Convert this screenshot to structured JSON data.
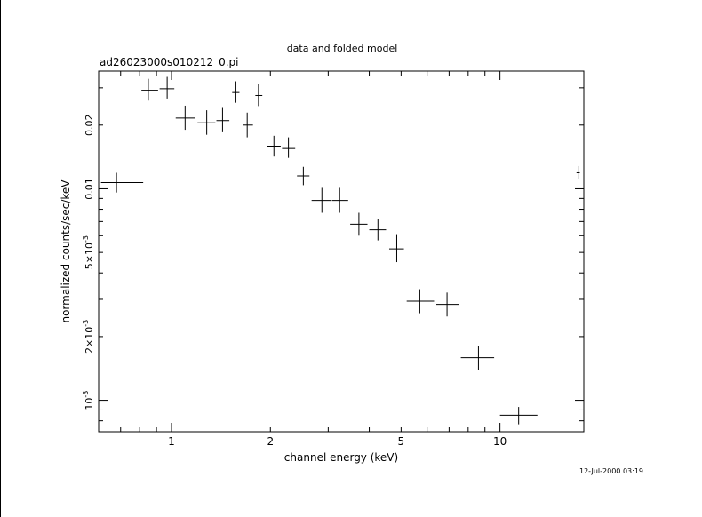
{
  "chart_data": {
    "type": "scatter",
    "title": "data and folded model",
    "subtitle": "ad26023000s010212_0.pi",
    "xlabel": "channel energy (keV)",
    "ylabel": "normalized counts/sec/keV",
    "timestamp": "12-Jul-2000 03:19",
    "x_scale": "log",
    "y_scale": "log",
    "xlim": [
      0.6,
      18.0
    ],
    "ylim": [
      0.00071,
      0.036
    ],
    "x_ticks": [
      {
        "value": 1,
        "label": "1"
      },
      {
        "value": 2,
        "label": "2"
      },
      {
        "value": 5,
        "label": "5"
      },
      {
        "value": 10,
        "label": "10"
      }
    ],
    "y_ticks": [
      {
        "value": 0.001,
        "base": "10",
        "exp": "-3"
      },
      {
        "value": 0.002,
        "base": "2×10",
        "exp": "-3"
      },
      {
        "value": 0.005,
        "base": "5×10",
        "exp": "-3"
      },
      {
        "value": 0.01,
        "label": "0.01"
      },
      {
        "value": 0.02,
        "label": "0.02"
      }
    ],
    "points": [
      {
        "x": 0.68,
        "y": 0.0107,
        "xerr": [
          0.61,
          0.82
        ],
        "yerr": [
          0.0096,
          0.0119
        ]
      },
      {
        "x": 0.85,
        "y": 0.0292,
        "xerr": [
          0.81,
          0.91
        ],
        "yerr": [
          0.0261,
          0.0331
        ]
      },
      {
        "x": 0.97,
        "y": 0.0297,
        "xerr": [
          0.92,
          1.02
        ],
        "yerr": [
          0.0267,
          0.0338
        ]
      },
      {
        "x": 1.1,
        "y": 0.0216,
        "xerr": [
          1.03,
          1.18
        ],
        "yerr": [
          0.019,
          0.0247
        ]
      },
      {
        "x": 1.28,
        "y": 0.0205,
        "xerr": [
          1.2,
          1.36
        ],
        "yerr": [
          0.018,
          0.0235
        ]
      },
      {
        "x": 1.43,
        "y": 0.021,
        "xerr": [
          1.37,
          1.5
        ],
        "yerr": [
          0.0185,
          0.0241
        ]
      },
      {
        "x": 1.57,
        "y": 0.0285,
        "xerr": [
          1.53,
          1.61
        ],
        "yerr": [
          0.0255,
          0.0322
        ]
      },
      {
        "x": 1.7,
        "y": 0.02,
        "xerr": [
          1.65,
          1.77
        ],
        "yerr": [
          0.0175,
          0.0229
        ]
      },
      {
        "x": 1.84,
        "y": 0.0276,
        "xerr": [
          1.8,
          1.89
        ],
        "yerr": [
          0.0246,
          0.0313
        ]
      },
      {
        "x": 2.05,
        "y": 0.0159,
        "xerr": [
          1.95,
          2.15
        ],
        "yerr": [
          0.0142,
          0.0178
        ]
      },
      {
        "x": 2.27,
        "y": 0.0155,
        "xerr": [
          2.17,
          2.38
        ],
        "yerr": [
          0.014,
          0.0175
        ]
      },
      {
        "x": 2.52,
        "y": 0.0115,
        "xerr": [
          2.41,
          2.63
        ],
        "yerr": [
          0.0104,
          0.0127
        ]
      },
      {
        "x": 2.87,
        "y": 0.0088,
        "xerr": [
          2.67,
          3.07
        ],
        "yerr": [
          0.0077,
          0.0101
        ]
      },
      {
        "x": 3.25,
        "y": 0.0088,
        "xerr": [
          3.08,
          3.45
        ],
        "yerr": [
          0.0077,
          0.0101
        ]
      },
      {
        "x": 3.72,
        "y": 0.0068,
        "xerr": [
          3.5,
          3.95
        ],
        "yerr": [
          0.006,
          0.0077
        ]
      },
      {
        "x": 4.25,
        "y": 0.0064,
        "xerr": [
          4.0,
          4.5
        ],
        "yerr": [
          0.0057,
          0.0072
        ]
      },
      {
        "x": 4.85,
        "y": 0.0052,
        "xerr": [
          4.6,
          5.1
        ],
        "yerr": [
          0.0045,
          0.0061
        ]
      },
      {
        "x": 5.7,
        "y": 0.00294,
        "xerr": [
          5.2,
          6.3
        ],
        "yerr": [
          0.00258,
          0.00335
        ]
      },
      {
        "x": 6.9,
        "y": 0.00284,
        "xerr": [
          6.4,
          7.5
        ],
        "yerr": [
          0.00249,
          0.00323
        ]
      },
      {
        "x": 8.6,
        "y": 0.00159,
        "xerr": [
          7.6,
          9.6
        ],
        "yerr": [
          0.00139,
          0.00181
        ]
      },
      {
        "x": 11.4,
        "y": 0.00085,
        "xerr": [
          10.0,
          13.0
        ],
        "yerr": [
          0.00077,
          0.00093
        ]
      },
      {
        "x": 17.3,
        "y": 0.0119,
        "xerr": [
          17.1,
          17.5
        ],
        "yerr": [
          0.0111,
          0.0128
        ]
      }
    ]
  }
}
